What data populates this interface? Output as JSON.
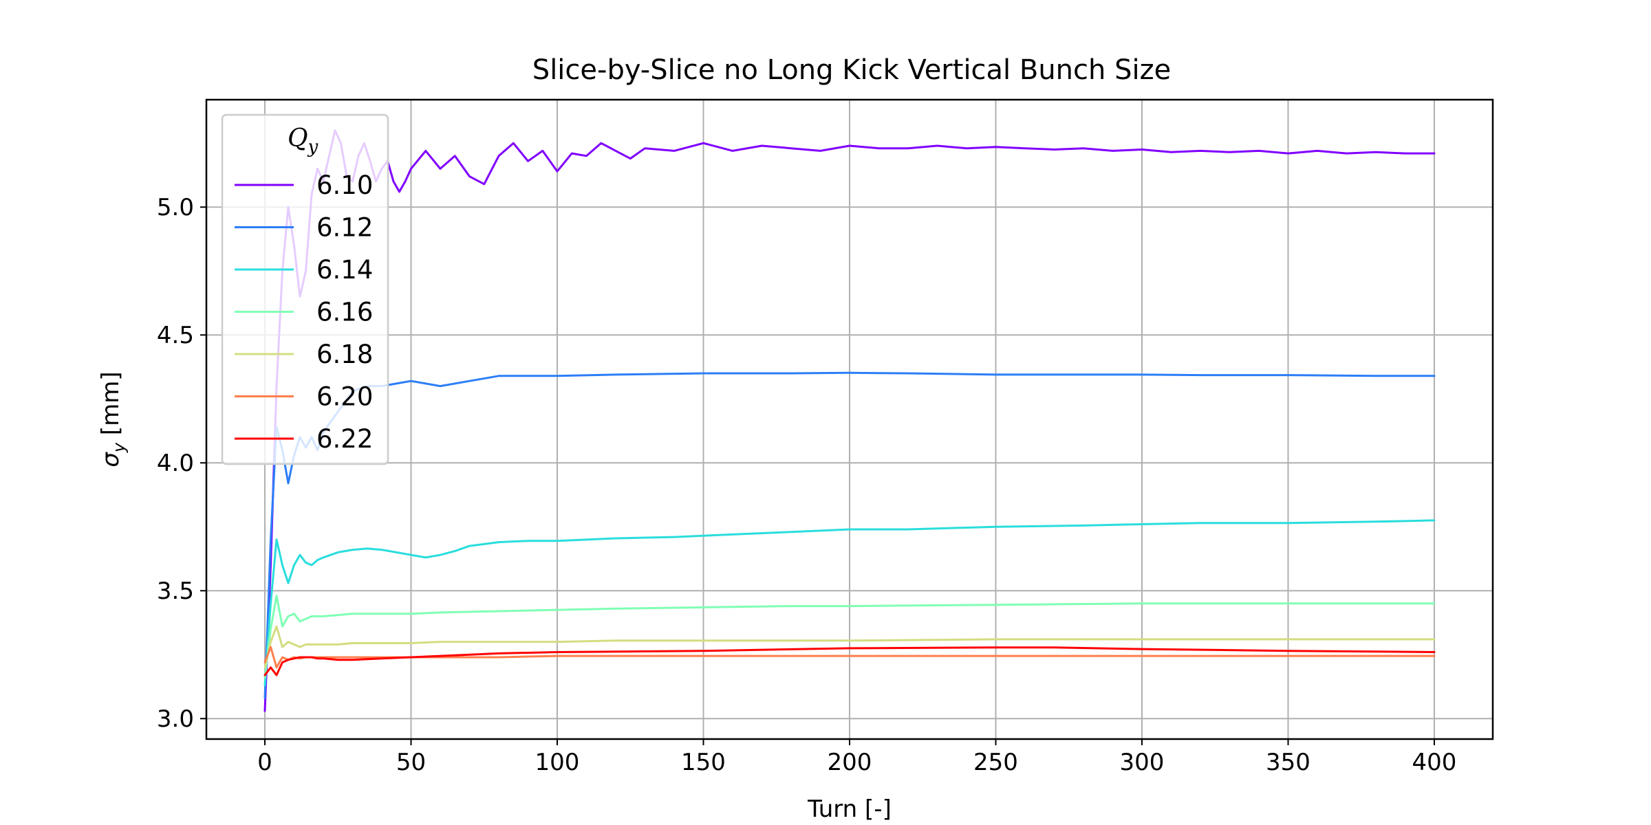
{
  "chart_data": {
    "type": "line",
    "title": "Slice-by-Slice no Long Kick Vertical Bunch Size",
    "xlabel": "Turn [-]",
    "ylabel_symbol": "σ",
    "ylabel_subscript": "y",
    "ylabel_unit": " [mm]",
    "xlim": [
      -20,
      420
    ],
    "ylim": [
      2.92,
      5.42
    ],
    "xticks": [
      0,
      50,
      100,
      150,
      200,
      250,
      300,
      350,
      400
    ],
    "yticks": [
      3.0,
      3.5,
      4.0,
      4.5,
      5.0
    ],
    "xtick_labels": [
      "0",
      "50",
      "100",
      "150",
      "200",
      "250",
      "300",
      "350",
      "400"
    ],
    "ytick_labels": [
      "3.0",
      "3.5",
      "4.0",
      "4.5",
      "5.0"
    ],
    "grid": true,
    "legend": {
      "title_symbol": "Q",
      "title_subscript": "y",
      "placement": "upper-left"
    },
    "series": [
      {
        "name": "6.10",
        "color": "#8000ff",
        "x": [
          0,
          2,
          4,
          6,
          8,
          10,
          12,
          14,
          16,
          18,
          20,
          22,
          24,
          26,
          28,
          30,
          32,
          34,
          36,
          38,
          40,
          42,
          44,
          46,
          48,
          50,
          55,
          60,
          65,
          70,
          75,
          80,
          85,
          90,
          95,
          100,
          105,
          110,
          115,
          120,
          125,
          130,
          140,
          150,
          160,
          170,
          180,
          190,
          200,
          210,
          220,
          230,
          240,
          250,
          260,
          270,
          280,
          290,
          300,
          310,
          320,
          330,
          340,
          350,
          360,
          370,
          380,
          390,
          400
        ],
        "y": [
          3.03,
          3.6,
          4.3,
          4.75,
          5.0,
          4.85,
          4.65,
          4.75,
          5.05,
          5.15,
          5.1,
          5.2,
          5.3,
          5.25,
          5.12,
          5.1,
          5.2,
          5.25,
          5.18,
          5.1,
          5.15,
          5.18,
          5.1,
          5.06,
          5.1,
          5.15,
          5.22,
          5.15,
          5.2,
          5.12,
          5.09,
          5.2,
          5.25,
          5.18,
          5.22,
          5.14,
          5.21,
          5.2,
          5.25,
          5.22,
          5.19,
          5.23,
          5.22,
          5.25,
          5.22,
          5.24,
          5.23,
          5.22,
          5.24,
          5.23,
          5.23,
          5.24,
          5.23,
          5.235,
          5.23,
          5.225,
          5.23,
          5.22,
          5.225,
          5.215,
          5.22,
          5.215,
          5.22,
          5.21,
          5.22,
          5.21,
          5.215,
          5.21,
          5.21
        ]
      },
      {
        "name": "6.12",
        "color": "#2c7ef7",
        "x": [
          0,
          2,
          4,
          6,
          8,
          10,
          12,
          14,
          16,
          18,
          20,
          25,
          30,
          35,
          40,
          45,
          50,
          55,
          60,
          70,
          80,
          90,
          100,
          120,
          150,
          180,
          200,
          220,
          250,
          280,
          300,
          320,
          350,
          380,
          400
        ],
        "y": [
          3.08,
          3.7,
          4.14,
          4.05,
          3.92,
          4.03,
          4.1,
          4.06,
          4.1,
          4.05,
          4.12,
          4.2,
          4.28,
          4.3,
          4.3,
          4.31,
          4.32,
          4.31,
          4.3,
          4.32,
          4.34,
          4.34,
          4.34,
          4.345,
          4.35,
          4.35,
          4.352,
          4.35,
          4.345,
          4.345,
          4.345,
          4.343,
          4.343,
          4.34,
          4.34
        ]
      },
      {
        "name": "6.14",
        "color": "#2adddd",
        "x": [
          0,
          2,
          4,
          6,
          8,
          10,
          12,
          14,
          16,
          18,
          20,
          25,
          30,
          35,
          40,
          45,
          50,
          55,
          60,
          65,
          70,
          80,
          90,
          100,
          120,
          140,
          160,
          180,
          200,
          220,
          250,
          280,
          300,
          320,
          350,
          380,
          400
        ],
        "y": [
          3.13,
          3.45,
          3.7,
          3.6,
          3.53,
          3.6,
          3.64,
          3.61,
          3.6,
          3.62,
          3.63,
          3.65,
          3.66,
          3.665,
          3.66,
          3.65,
          3.64,
          3.63,
          3.64,
          3.655,
          3.675,
          3.69,
          3.695,
          3.695,
          3.705,
          3.71,
          3.72,
          3.73,
          3.74,
          3.74,
          3.75,
          3.755,
          3.76,
          3.765,
          3.765,
          3.77,
          3.775
        ]
      },
      {
        "name": "6.16",
        "color": "#80ffb4",
        "x": [
          0,
          2,
          4,
          6,
          8,
          10,
          12,
          14,
          16,
          18,
          20,
          25,
          30,
          40,
          50,
          60,
          80,
          100,
          120,
          150,
          180,
          200,
          250,
          300,
          350,
          400
        ],
        "y": [
          3.16,
          3.35,
          3.48,
          3.36,
          3.4,
          3.41,
          3.38,
          3.39,
          3.4,
          3.4,
          3.4,
          3.405,
          3.41,
          3.41,
          3.41,
          3.415,
          3.42,
          3.425,
          3.43,
          3.435,
          3.44,
          3.44,
          3.445,
          3.45,
          3.45,
          3.45
        ]
      },
      {
        "name": "6.18",
        "color": "#d4dd80",
        "x": [
          0,
          2,
          4,
          6,
          8,
          10,
          12,
          14,
          16,
          18,
          20,
          25,
          30,
          40,
          50,
          60,
          80,
          100,
          120,
          150,
          200,
          250,
          300,
          350,
          400
        ],
        "y": [
          3.2,
          3.3,
          3.36,
          3.28,
          3.3,
          3.29,
          3.28,
          3.29,
          3.29,
          3.29,
          3.29,
          3.29,
          3.295,
          3.295,
          3.295,
          3.3,
          3.3,
          3.3,
          3.305,
          3.305,
          3.305,
          3.31,
          3.31,
          3.31,
          3.31
        ]
      },
      {
        "name": "6.20",
        "color": "#ff7f4e",
        "x": [
          0,
          2,
          4,
          6,
          8,
          10,
          12,
          14,
          16,
          18,
          20,
          25,
          30,
          40,
          50,
          60,
          80,
          100,
          150,
          200,
          250,
          300,
          350,
          400
        ],
        "y": [
          3.22,
          3.28,
          3.2,
          3.24,
          3.23,
          3.24,
          3.235,
          3.24,
          3.24,
          3.24,
          3.24,
          3.24,
          3.24,
          3.24,
          3.24,
          3.24,
          3.24,
          3.245,
          3.245,
          3.245,
          3.245,
          3.245,
          3.245,
          3.245
        ]
      },
      {
        "name": "6.22",
        "color": "#ff0000",
        "x": [
          0,
          2,
          4,
          6,
          8,
          10,
          12,
          14,
          16,
          18,
          20,
          25,
          30,
          40,
          50,
          60,
          80,
          100,
          150,
          200,
          250,
          270,
          300,
          350,
          400
        ],
        "y": [
          3.17,
          3.2,
          3.17,
          3.22,
          3.23,
          3.235,
          3.24,
          3.24,
          3.24,
          3.235,
          3.235,
          3.23,
          3.23,
          3.235,
          3.24,
          3.245,
          3.255,
          3.26,
          3.265,
          3.275,
          3.278,
          3.278,
          3.272,
          3.265,
          3.26
        ]
      }
    ]
  }
}
